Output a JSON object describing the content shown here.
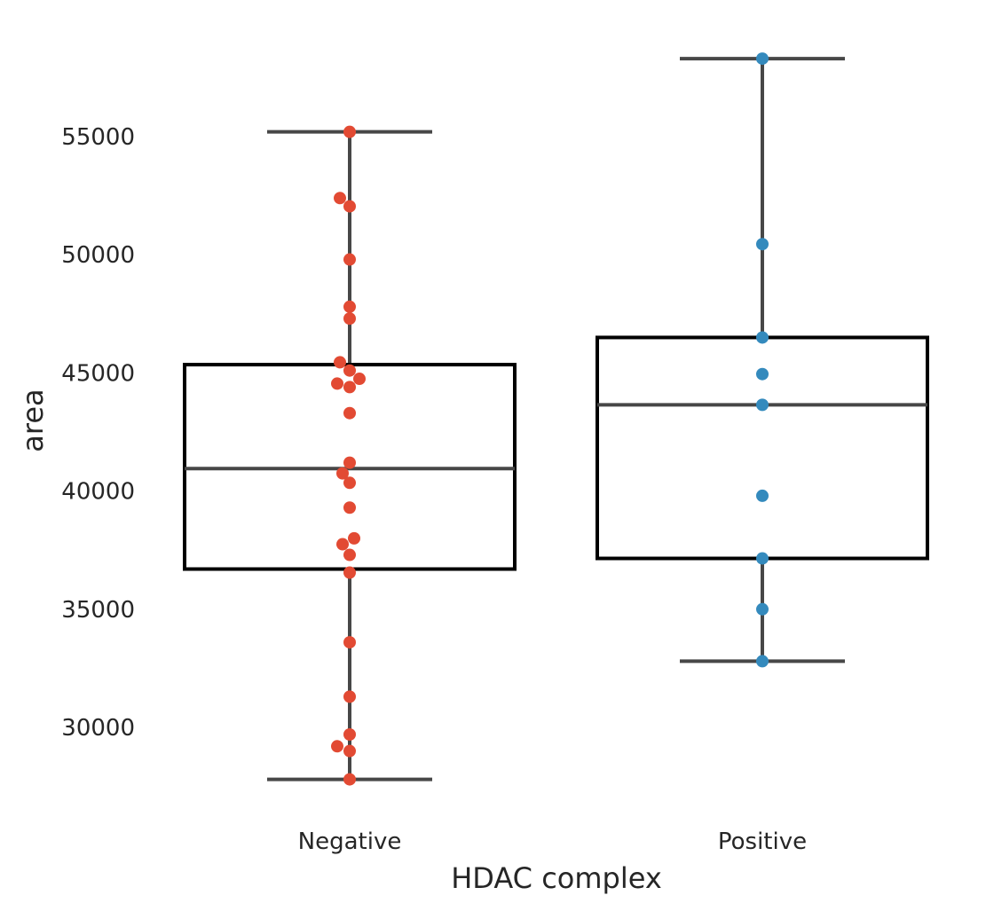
{
  "chart_data": {
    "type": "box",
    "xlabel": "HDAC complex",
    "ylabel": "area",
    "y_ticks": [
      30000,
      35000,
      40000,
      45000,
      50000,
      55000
    ],
    "ylim": [
      26500,
      59500
    ],
    "grid": false,
    "groups": [
      {
        "category": "Negative",
        "color": "#E24A33",
        "whisker_low": 27800,
        "q1": 36700,
        "median": 40950,
        "q3": 45350,
        "whisker_high": 55200,
        "points": [
          {
            "y": 55200,
            "dx": 0
          },
          {
            "y": 52400,
            "dx": -11
          },
          {
            "y": 52050,
            "dx": 0
          },
          {
            "y": 49800,
            "dx": 0
          },
          {
            "y": 47800,
            "dx": 0
          },
          {
            "y": 47300,
            "dx": 0
          },
          {
            "y": 45450,
            "dx": -11
          },
          {
            "y": 45100,
            "dx": 0
          },
          {
            "y": 44750,
            "dx": 11
          },
          {
            "y": 44550,
            "dx": -14
          },
          {
            "y": 44400,
            "dx": 0
          },
          {
            "y": 43300,
            "dx": 0
          },
          {
            "y": 41200,
            "dx": 0
          },
          {
            "y": 40750,
            "dx": -8
          },
          {
            "y": 40350,
            "dx": 0
          },
          {
            "y": 39300,
            "dx": 0
          },
          {
            "y": 38000,
            "dx": 5
          },
          {
            "y": 37750,
            "dx": -8
          },
          {
            "y": 37300,
            "dx": 0
          },
          {
            "y": 36550,
            "dx": 0
          },
          {
            "y": 33600,
            "dx": 0
          },
          {
            "y": 31300,
            "dx": 0
          },
          {
            "y": 29700,
            "dx": 0
          },
          {
            "y": 29200,
            "dx": -14
          },
          {
            "y": 29000,
            "dx": 0
          },
          {
            "y": 27800,
            "dx": 0
          }
        ]
      },
      {
        "category": "Positive",
        "color": "#348ABD",
        "whisker_low": 32800,
        "q1": 37150,
        "median": 43650,
        "q3": 46500,
        "whisker_high": 58300,
        "points": [
          {
            "y": 58300,
            "dx": 0
          },
          {
            "y": 50450,
            "dx": 0
          },
          {
            "y": 46500,
            "dx": 0
          },
          {
            "y": 44950,
            "dx": 0
          },
          {
            "y": 43650,
            "dx": 0
          },
          {
            "y": 39800,
            "dx": 0
          },
          {
            "y": 37150,
            "dx": 0
          },
          {
            "y": 35000,
            "dx": 0
          },
          {
            "y": 32800,
            "dx": 0
          }
        ]
      }
    ]
  }
}
